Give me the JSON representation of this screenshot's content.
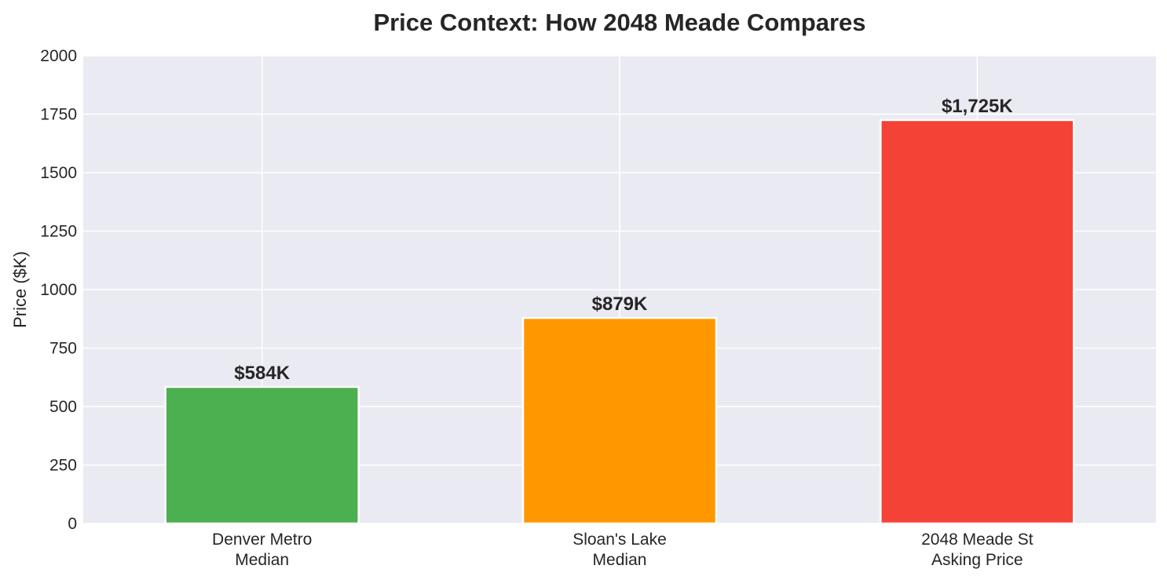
{
  "chart_data": {
    "type": "bar",
    "title": "Price Context: How 2048 Meade Compares",
    "xlabel": "",
    "ylabel": "Price ($K)",
    "ylim": [
      0,
      2000
    ],
    "yticks": [
      0,
      250,
      500,
      750,
      1000,
      1250,
      1500,
      1750,
      2000
    ],
    "grid": true,
    "categories": [
      [
        "Denver Metro",
        "Median"
      ],
      [
        "Sloan's Lake",
        "Median"
      ],
      [
        "2048 Meade St",
        "Asking Price"
      ]
    ],
    "values": [
      584,
      879,
      1725
    ],
    "data_labels": [
      "$584K",
      "$879K",
      "$1,725K"
    ],
    "colors": [
      "#4caf50",
      "#ff9800",
      "#f44336"
    ]
  },
  "style": {
    "plot_background": "#eaeaf2",
    "grid_color": "#ffffff",
    "text_color": "#262626"
  }
}
